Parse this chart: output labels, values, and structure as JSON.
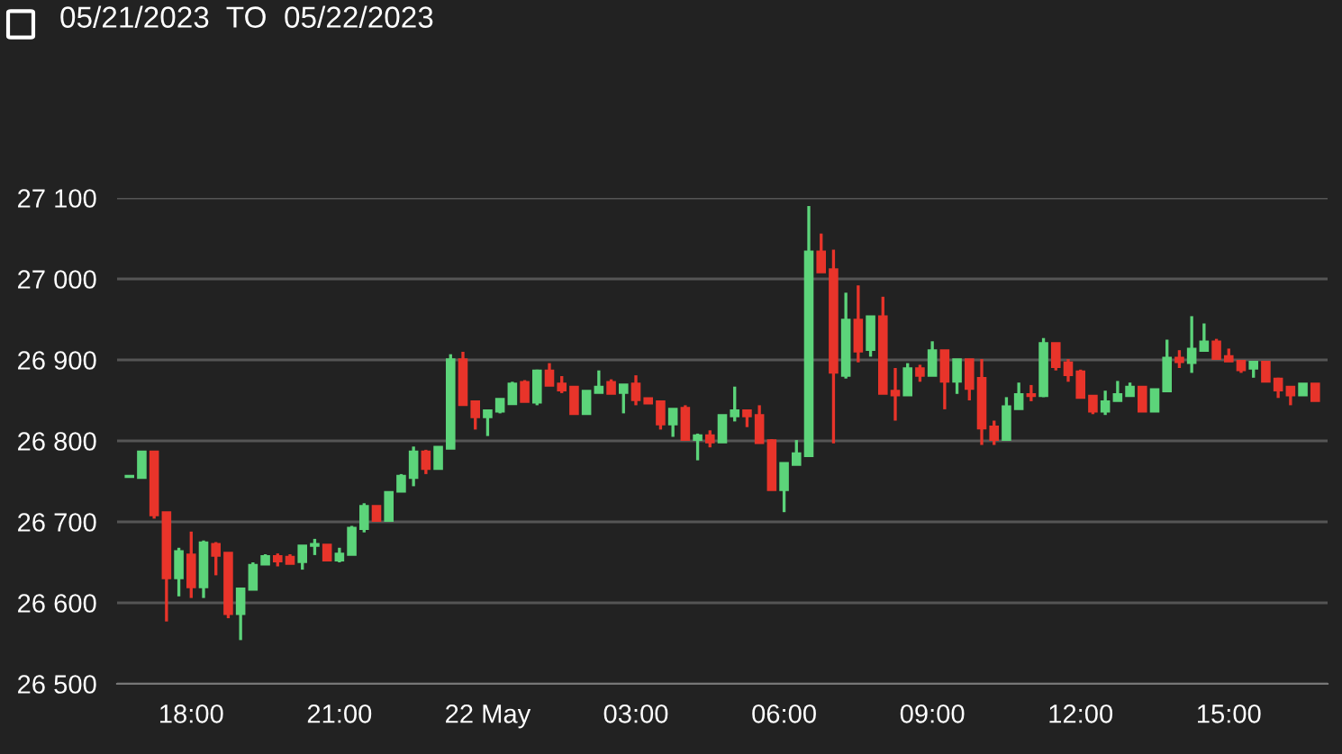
{
  "chart_data": {
    "type": "candlestick",
    "title": "05/21/2023  TO  05/22/2023",
    "x": [
      "2023-05-21T16:45",
      "2023-05-21T17:00",
      "2023-05-21T17:15",
      "2023-05-21T17:30",
      "2023-05-21T17:45",
      "2023-05-21T18:00",
      "2023-05-21T18:15",
      "2023-05-21T18:30",
      "2023-05-21T18:45",
      "2023-05-21T19:00",
      "2023-05-21T19:15",
      "2023-05-21T19:30",
      "2023-05-21T19:45",
      "2023-05-21T20:00",
      "2023-05-21T20:15",
      "2023-05-21T20:30",
      "2023-05-21T20:45",
      "2023-05-21T21:00",
      "2023-05-21T21:15",
      "2023-05-21T21:30",
      "2023-05-21T21:45",
      "2023-05-21T22:00",
      "2023-05-21T22:15",
      "2023-05-21T22:30",
      "2023-05-21T22:45",
      "2023-05-21T23:00",
      "2023-05-21T23:15",
      "2023-05-21T23:30",
      "2023-05-21T23:45",
      "2023-05-22T00:00",
      "2023-05-22T00:15",
      "2023-05-22T00:30",
      "2023-05-22T00:45",
      "2023-05-22T01:00",
      "2023-05-22T01:15",
      "2023-05-22T01:30",
      "2023-05-22T01:45",
      "2023-05-22T02:00",
      "2023-05-22T02:15",
      "2023-05-22T02:30",
      "2023-05-22T02:45",
      "2023-05-22T03:00",
      "2023-05-22T03:15",
      "2023-05-22T03:30",
      "2023-05-22T03:45",
      "2023-05-22T04:00",
      "2023-05-22T04:15",
      "2023-05-22T04:30",
      "2023-05-22T04:45",
      "2023-05-22T05:00",
      "2023-05-22T05:15",
      "2023-05-22T05:30",
      "2023-05-22T05:45",
      "2023-05-22T06:00",
      "2023-05-22T06:15",
      "2023-05-22T06:30",
      "2023-05-22T06:45",
      "2023-05-22T07:00",
      "2023-05-22T07:15",
      "2023-05-22T07:30",
      "2023-05-22T07:45",
      "2023-05-22T08:00",
      "2023-05-22T08:15",
      "2023-05-22T08:30",
      "2023-05-22T08:45",
      "2023-05-22T09:00",
      "2023-05-22T09:15",
      "2023-05-22T09:30",
      "2023-05-22T09:45",
      "2023-05-22T10:00",
      "2023-05-22T10:15",
      "2023-05-22T10:30",
      "2023-05-22T10:45",
      "2023-05-22T11:00",
      "2023-05-22T11:15",
      "2023-05-22T11:30",
      "2023-05-22T11:45",
      "2023-05-22T12:00",
      "2023-05-22T12:15",
      "2023-05-22T12:30",
      "2023-05-22T12:45",
      "2023-05-22T13:00",
      "2023-05-22T13:15",
      "2023-05-22T13:30",
      "2023-05-22T13:45",
      "2023-05-22T14:00",
      "2023-05-22T14:15",
      "2023-05-22T14:30",
      "2023-05-22T14:45",
      "2023-05-22T15:00",
      "2023-05-22T15:15",
      "2023-05-22T15:30",
      "2023-05-22T15:45",
      "2023-05-22T16:00",
      "2023-05-22T16:15",
      "2023-05-22T16:30",
      "2023-05-22T16:45"
    ],
    "ohlc": [
      [
        26755,
        26757,
        26755,
        26757
      ],
      [
        26754,
        26787,
        26754,
        26787
      ],
      [
        26787,
        26787,
        26704,
        26708
      ],
      [
        26712,
        26712,
        26577,
        26630
      ],
      [
        26630,
        26668,
        26608,
        26664
      ],
      [
        26660,
        26688,
        26606,
        26619
      ],
      [
        26619,
        26677,
        26606,
        26675
      ],
      [
        26673,
        26675,
        26634,
        26658
      ],
      [
        26662,
        26662,
        26581,
        26586
      ],
      [
        26586,
        26618,
        26554,
        26618
      ],
      [
        26616,
        26650,
        26616,
        26647
      ],
      [
        26647,
        26660,
        26647,
        26658
      ],
      [
        26658,
        26661,
        26645,
        26651
      ],
      [
        26657,
        26660,
        26648,
        26648
      ],
      [
        26650,
        26671,
        26641,
        26671
      ],
      [
        26670,
        26679,
        26659,
        26673
      ],
      [
        26672,
        26672,
        26652,
        26652
      ],
      [
        26652,
        26668,
        26650,
        26661
      ],
      [
        26659,
        26695,
        26659,
        26693
      ],
      [
        26691,
        26723,
        26687,
        26720
      ],
      [
        26720,
        26720,
        26701,
        26701
      ],
      [
        26701,
        26737,
        26701,
        26737
      ],
      [
        26737,
        26759,
        26737,
        26757
      ],
      [
        26754,
        26793,
        26744,
        26787
      ],
      [
        26787,
        26789,
        26759,
        26765
      ],
      [
        26765,
        26793,
        26765,
        26793
      ],
      [
        26790,
        26907,
        26790,
        26901
      ],
      [
        26901,
        26910,
        26844,
        26844
      ],
      [
        26849,
        26849,
        26814,
        26829
      ],
      [
        26829,
        26838,
        26806,
        26838
      ],
      [
        26836,
        26852,
        26834,
        26852
      ],
      [
        26845,
        26873,
        26845,
        26871
      ],
      [
        26873,
        26875,
        26848,
        26848
      ],
      [
        26847,
        26888,
        26844,
        26887
      ],
      [
        26887,
        26896,
        26868,
        26868
      ],
      [
        26871,
        26880,
        26859,
        26862
      ],
      [
        26867,
        26867,
        26833,
        26833
      ],
      [
        26833,
        26862,
        26833,
        26862
      ],
      [
        26859,
        26887,
        26859,
        26867
      ],
      [
        26873,
        26876,
        26858,
        26858
      ],
      [
        26859,
        26870,
        26834,
        26870
      ],
      [
        26871,
        26881,
        26844,
        26850
      ],
      [
        26853,
        26853,
        26846,
        26846
      ],
      [
        26849,
        26849,
        26814,
        26820
      ],
      [
        26820,
        26840,
        26805,
        26840
      ],
      [
        26841,
        26844,
        26801,
        26801
      ],
      [
        26801,
        26809,
        26776,
        26807
      ],
      [
        26807,
        26813,
        26792,
        26798
      ],
      [
        26798,
        26832,
        26798,
        26832
      ],
      [
        26830,
        26867,
        26824,
        26838
      ],
      [
        26838,
        26838,
        26817,
        26830
      ],
      [
        26832,
        26844,
        26797,
        26797
      ],
      [
        26801,
        26802,
        26739,
        26739
      ],
      [
        26739,
        26773,
        26712,
        26773
      ],
      [
        26770,
        26801,
        26770,
        26785
      ],
      [
        26781,
        27090,
        26781,
        27034
      ],
      [
        27034,
        27056,
        27008,
        27008
      ],
      [
        27012,
        27036,
        26797,
        26884
      ],
      [
        26880,
        26983,
        26877,
        26950
      ],
      [
        26950,
        26992,
        26897,
        26910
      ],
      [
        26912,
        26954,
        26904,
        26954
      ],
      [
        26954,
        26978,
        26858,
        26858
      ],
      [
        26862,
        26890,
        26825,
        26856
      ],
      [
        26856,
        26896,
        26856,
        26890
      ],
      [
        26890,
        26894,
        26873,
        26880
      ],
      [
        26880,
        26923,
        26880,
        26912
      ],
      [
        26912,
        26912,
        26839,
        26873
      ],
      [
        26873,
        26901,
        26858,
        26901
      ],
      [
        26901,
        26901,
        26850,
        26864
      ],
      [
        26878,
        26901,
        26795,
        26815
      ],
      [
        26818,
        26825,
        26795,
        26801
      ],
      [
        26801,
        26854,
        26801,
        26843
      ],
      [
        26839,
        26872,
        26839,
        26858
      ],
      [
        26858,
        26869,
        26849,
        26855
      ],
      [
        26855,
        26927,
        26854,
        26921
      ],
      [
        26921,
        26921,
        26887,
        26891
      ],
      [
        26897,
        26901,
        26873,
        26881
      ],
      [
        26886,
        26888,
        26853,
        26853
      ],
      [
        26856,
        26856,
        26833,
        26836
      ],
      [
        26836,
        26862,
        26832,
        26849
      ],
      [
        26849,
        26874,
        26849,
        26858
      ],
      [
        26855,
        26872,
        26855,
        26867
      ],
      [
        26867,
        26867,
        26836,
        26836
      ],
      [
        26836,
        26864,
        26836,
        26864
      ],
      [
        26861,
        26925,
        26861,
        26903
      ],
      [
        26903,
        26912,
        26890,
        26897
      ],
      [
        26896,
        26954,
        26884,
        26914
      ],
      [
        26911,
        26945,
        26911,
        26923
      ],
      [
        26923,
        26926,
        26901,
        26901
      ],
      [
        26905,
        26914,
        26898,
        26898
      ],
      [
        26899,
        26899,
        26884,
        26887
      ],
      [
        26889,
        26898,
        26878,
        26898
      ],
      [
        26898,
        26898,
        26873,
        26873
      ],
      [
        26877,
        26878,
        26853,
        26862
      ],
      [
        26867,
        26867,
        26844,
        26856
      ],
      [
        26856,
        26871,
        26856,
        26871
      ],
      [
        26871,
        26871,
        26849,
        26849
      ]
    ],
    "colors": [
      "#5cd47a",
      "#5cd47a",
      "#e8342a",
      "#e8342a",
      "#5cd47a",
      "#e8342a",
      "#5cd47a",
      "#e8342a",
      "#e8342a",
      "#5cd47a",
      "#5cd47a",
      "#5cd47a",
      "#e8342a",
      "#e8342a",
      "#5cd47a",
      "#5cd47a",
      "#e8342a",
      "#5cd47a",
      "#5cd47a",
      "#5cd47a",
      "#e8342a",
      "#5cd47a",
      "#5cd47a",
      "#5cd47a",
      "#e8342a",
      "#5cd47a",
      "#5cd47a",
      "#e8342a",
      "#e8342a",
      "#5cd47a",
      "#5cd47a",
      "#5cd47a",
      "#e8342a",
      "#5cd47a",
      "#e8342a",
      "#e8342a",
      "#e8342a",
      "#5cd47a",
      "#5cd47a",
      "#e8342a",
      "#5cd47a",
      "#e8342a",
      "#e8342a",
      "#e8342a",
      "#5cd47a",
      "#e8342a",
      "#5cd47a",
      "#e8342a",
      "#5cd47a",
      "#5cd47a",
      "#e8342a",
      "#e8342a",
      "#e8342a",
      "#5cd47a",
      "#5cd47a",
      "#5cd47a",
      "#e8342a",
      "#e8342a",
      "#5cd47a",
      "#e8342a",
      "#5cd47a",
      "#e8342a",
      "#e8342a",
      "#5cd47a",
      "#e8342a",
      "#5cd47a",
      "#e8342a",
      "#5cd47a",
      "#e8342a",
      "#e8342a",
      "#e8342a",
      "#5cd47a",
      "#5cd47a",
      "#e8342a",
      "#5cd47a",
      "#e8342a",
      "#e8342a",
      "#e8342a",
      "#e8342a",
      "#5cd47a",
      "#5cd47a",
      "#5cd47a",
      "#e8342a",
      "#5cd47a",
      "#5cd47a",
      "#e8342a",
      "#5cd47a",
      "#5cd47a",
      "#e8342a",
      "#e8342a",
      "#e8342a",
      "#5cd47a",
      "#e8342a",
      "#e8342a",
      "#e8342a",
      "#5cd47a",
      "#e8342a"
    ],
    "xlim": [
      "2023-05-21T16:30",
      "2023-05-22T17:00"
    ],
    "xticks": [
      {
        "value": "2023-05-21T18:00",
        "label": "18:00"
      },
      {
        "value": "2023-05-21T21:00",
        "label": "21:00"
      },
      {
        "value": "2023-05-22T00:00",
        "label": "22 May"
      },
      {
        "value": "2023-05-22T03:00",
        "label": "03:00"
      },
      {
        "value": "2023-05-22T06:00",
        "label": "06:00"
      },
      {
        "value": "2023-05-22T09:00",
        "label": "09:00"
      },
      {
        "value": "2023-05-22T12:00",
        "label": "12:00"
      },
      {
        "value": "2023-05-22T15:00",
        "label": "15:00"
      }
    ],
    "ylim": [
      26500,
      27100
    ],
    "yticks": [
      {
        "value": 26500,
        "label": "26 500"
      },
      {
        "value": 26600,
        "label": "26 600"
      },
      {
        "value": 26700,
        "label": "26 700"
      },
      {
        "value": 26800,
        "label": "26 800"
      },
      {
        "value": 26900,
        "label": "26 900"
      },
      {
        "value": 27000,
        "label": "27 000"
      },
      {
        "value": 27100,
        "label": "27 100"
      }
    ],
    "grid": "y"
  }
}
